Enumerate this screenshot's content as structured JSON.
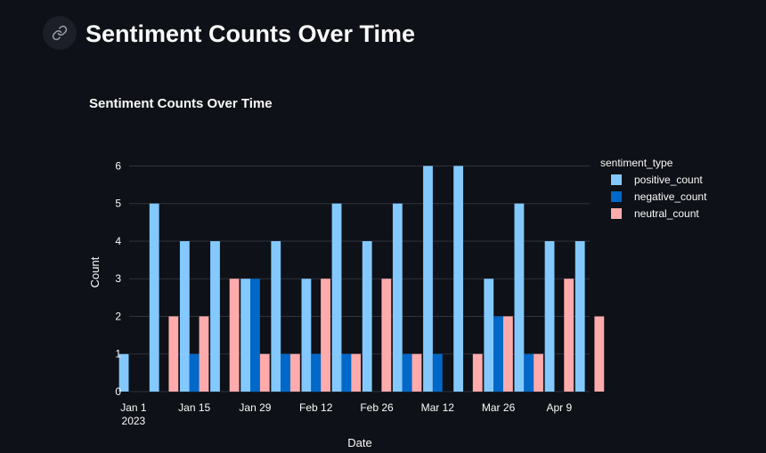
{
  "page": {
    "title": "Sentiment Counts Over Time"
  },
  "colors": {
    "positive": "#83c9ff",
    "negative": "#0068c9",
    "neutral": "#ffabab"
  },
  "chart_data": {
    "type": "bar",
    "title": "Sentiment Counts Over Time",
    "xlabel": "Date",
    "ylabel": "Count",
    "ylim": [
      0,
      6.2
    ],
    "yticks": [
      0,
      1,
      2,
      3,
      4,
      5,
      6
    ],
    "xlim": [
      "2022-12-31",
      "2023-04-16"
    ],
    "xticks": [
      {
        "date": "2023-01-01",
        "label": "Jan 1",
        "sublabel": "2023"
      },
      {
        "date": "2023-01-15",
        "label": "Jan 15"
      },
      {
        "date": "2023-01-29",
        "label": "Jan 29"
      },
      {
        "date": "2023-02-12",
        "label": "Feb 12"
      },
      {
        "date": "2023-02-26",
        "label": "Feb 26"
      },
      {
        "date": "2023-03-12",
        "label": "Mar 12"
      },
      {
        "date": "2023-03-26",
        "label": "Mar 26"
      },
      {
        "date": "2023-04-09",
        "label": "Apr 9"
      }
    ],
    "legend": {
      "title": "sentiment_type",
      "position": "top-right"
    },
    "grid": true,
    "x": [
      "2023-01-01",
      "2023-01-08",
      "2023-01-15",
      "2023-01-22",
      "2023-01-29",
      "2023-02-05",
      "2023-02-12",
      "2023-02-19",
      "2023-02-26",
      "2023-03-05",
      "2023-03-12",
      "2023-03-19",
      "2023-03-26",
      "2023-04-02",
      "2023-04-09",
      "2023-04-16"
    ],
    "series": [
      {
        "name": "positive_count",
        "values": [
          1,
          5,
          4,
          4,
          3,
          4,
          3,
          5,
          4,
          5,
          6,
          6,
          3,
          5,
          4,
          4
        ]
      },
      {
        "name": "negative_count",
        "values": [
          0,
          0,
          1,
          0,
          3,
          1,
          1,
          1,
          0,
          1,
          1,
          0,
          2,
          1,
          0,
          0
        ]
      },
      {
        "name": "neutral_count",
        "values": [
          0,
          2,
          2,
          3,
          1,
          1,
          3,
          1,
          3,
          1,
          0,
          1,
          2,
          1,
          3,
          2
        ]
      }
    ]
  }
}
